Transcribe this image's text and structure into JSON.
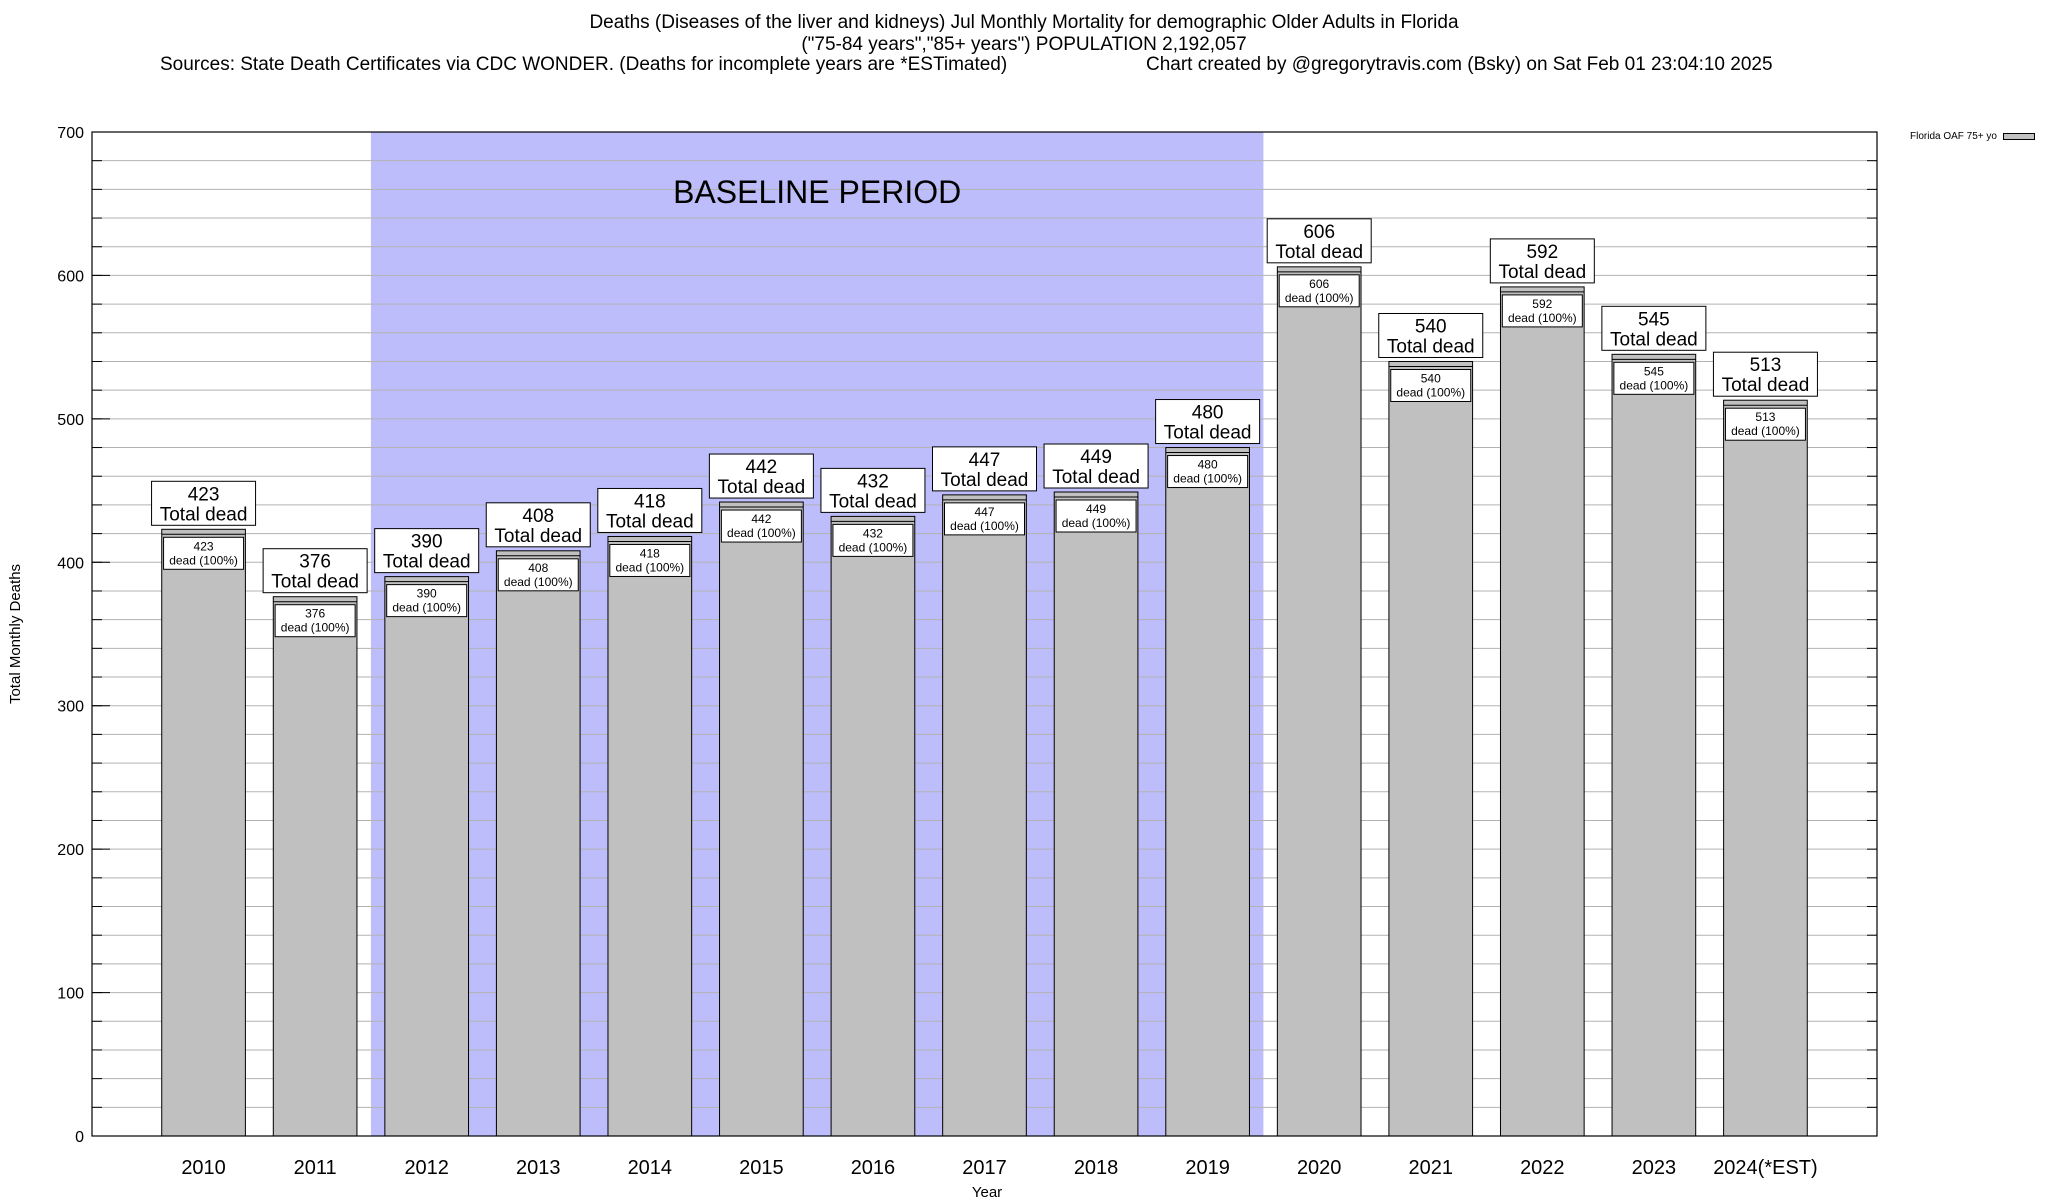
{
  "colors": {
    "bar_fill": "#c0c0c0",
    "baseline_band": "#bdbdfb",
    "grid": "#b3b3b3",
    "text": "#000000",
    "background": "#ffffff"
  },
  "title": {
    "line1": "Deaths (Diseases of the liver and kidneys) Jul Monthly Mortality for demographic Older Adults in Florida",
    "line2": "(\"75-84 years\",\"85+ years\") POPULATION 2,192,057",
    "sources": "Sources: State Death Certificates via CDC WONDER. (Deaths for incomplete years are *ESTimated)",
    "credit": "Chart created by @gregorytravis.com (Bsky) on Sat Feb 01 23:04:10 2025"
  },
  "legend": {
    "label": "Florida OAF 75+ yo"
  },
  "chart_data": {
    "type": "bar",
    "categories": [
      "2010",
      "2011",
      "2012",
      "2013",
      "2014",
      "2015",
      "2016",
      "2017",
      "2018",
      "2019",
      "2020",
      "2021",
      "2022",
      "2023",
      "2024(*EST)"
    ],
    "series": [
      {
        "name": "Florida OAF 75+ yo",
        "values": [
          423,
          376,
          390,
          408,
          418,
          442,
          432,
          447,
          449,
          480,
          606,
          540,
          592,
          545,
          513
        ]
      }
    ],
    "xlabel": "Year",
    "ylabel": "Total Monthly Deaths",
    "ylim": [
      0,
      700
    ],
    "yticks": [
      0,
      100,
      200,
      300,
      400,
      500,
      600,
      700
    ],
    "minor_grid_step": 20,
    "grid": true,
    "legend_position": "top-right",
    "total_label_suffix": "Total dead",
    "inner_label_suffix": "dead (100%)",
    "baseline_period": {
      "label": "BASELINE PERIOD",
      "from": "2012",
      "to": "2019"
    }
  }
}
